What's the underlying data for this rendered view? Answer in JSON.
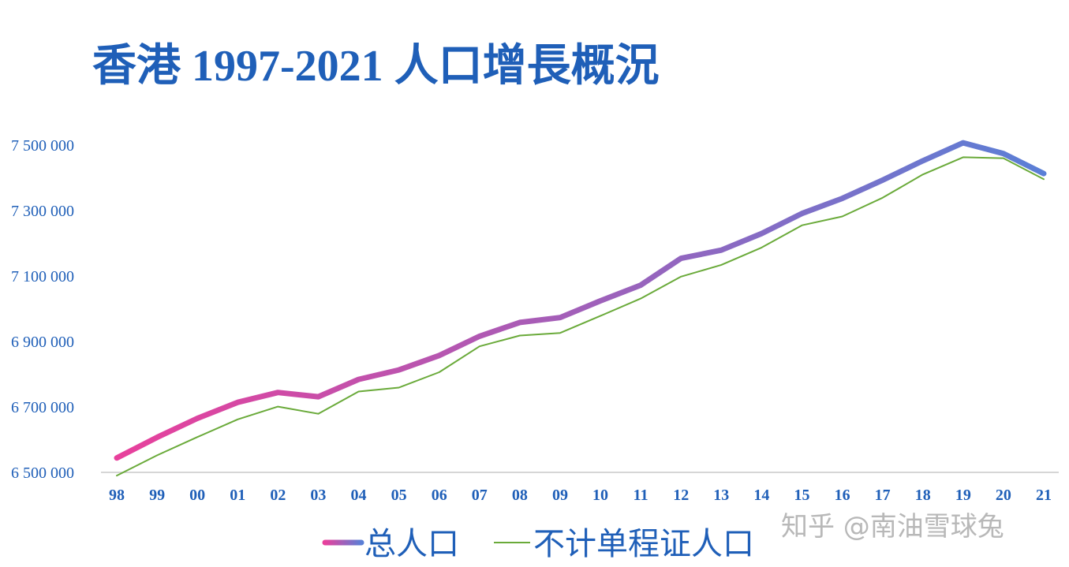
{
  "title": "香港 1997-2021 人口增長概況",
  "watermark": "知乎 @南油雪球兔",
  "colors": {
    "title": "#1f5fb8",
    "axis_text": "#1f5fb8",
    "total_start": "#e8409c",
    "total_end": "#5a7fd6",
    "excl": "#6aaa3a",
    "axis_line": "#c8c8c8"
  },
  "chart_data": {
    "type": "line",
    "title": "香港 1997-2021 人口增長概況",
    "xlabel": "",
    "ylabel": "",
    "categories": [
      "98",
      "99",
      "00",
      "01",
      "02",
      "03",
      "04",
      "05",
      "06",
      "07",
      "08",
      "09",
      "10",
      "11",
      "12",
      "13",
      "14",
      "15",
      "16",
      "17",
      "18",
      "19",
      "20",
      "21"
    ],
    "ylim": [
      6500000,
      7500000
    ],
    "yticks": [
      6500000,
      6700000,
      6900000,
      7100000,
      7300000,
      7500000
    ],
    "ytick_labels": [
      "6 500 000",
      "6 700 000",
      "6 900 000",
      "7 100 000",
      "7 300 000",
      "7 500 000"
    ],
    "grid": false,
    "legend_position": "bottom",
    "series": [
      {
        "name": "总人口",
        "style": "thick-gradient",
        "values": [
          6544000,
          6607000,
          6665000,
          6714000,
          6744000,
          6731000,
          6784000,
          6813000,
          6857000,
          6916000,
          6958000,
          6973000,
          7024000,
          7072000,
          7154000,
          7179000,
          7230000,
          7291000,
          7337000,
          7393000,
          7452000,
          7507000,
          7474000,
          7413000
        ]
      },
      {
        "name": "不计单程证人口",
        "style": "thin-green",
        "values": [
          6490000,
          6552000,
          6608000,
          6662000,
          6701000,
          6679000,
          6747000,
          6759000,
          6806000,
          6885000,
          6918000,
          6926000,
          6978000,
          7031000,
          7098000,
          7134000,
          7187000,
          7255000,
          7282000,
          7339000,
          7410000,
          7463000,
          7460000,
          7396000
        ]
      }
    ]
  }
}
